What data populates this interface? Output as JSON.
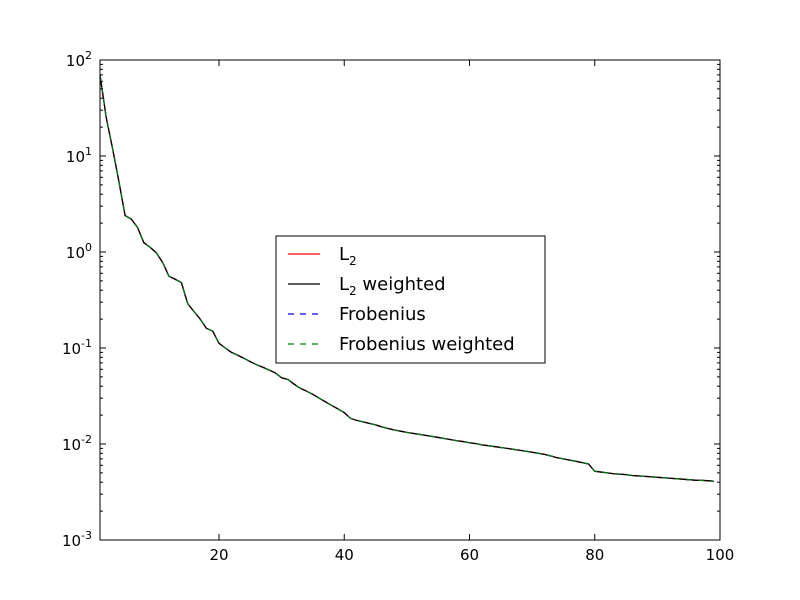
{
  "chart_data": {
    "type": "line",
    "title": "",
    "xlabel": "",
    "ylabel": "",
    "xlim": [
      1,
      100
    ],
    "ylim": [
      0.001,
      100
    ],
    "yscale": "log",
    "grid": false,
    "legend_placement": "center",
    "x_ticks": [
      {
        "value": 20,
        "label": "20"
      },
      {
        "value": 40,
        "label": "40"
      },
      {
        "value": 60,
        "label": "60"
      },
      {
        "value": 80,
        "label": "80"
      },
      {
        "value": 100,
        "label": "100"
      }
    ],
    "y_ticks": [
      {
        "value": 100,
        "base": "10",
        "exp": "2"
      },
      {
        "value": 10,
        "base": "10",
        "exp": "1"
      },
      {
        "value": 1,
        "base": "10",
        "exp": "0"
      },
      {
        "value": 0.1,
        "base": "10",
        "exp": "-1"
      },
      {
        "value": 0.01,
        "base": "10",
        "exp": "-2"
      },
      {
        "value": 0.001,
        "base": "10",
        "exp": "-3"
      }
    ],
    "x": [
      1,
      2,
      3,
      4,
      5,
      6,
      7,
      8,
      9,
      10,
      11,
      12,
      13,
      14,
      15,
      16,
      17,
      18,
      19,
      20,
      21,
      22,
      23,
      24,
      25,
      26,
      27,
      28,
      29,
      30,
      31,
      32,
      33,
      34,
      35,
      36,
      37,
      38,
      39,
      40,
      41,
      42,
      43,
      44,
      45,
      46,
      47,
      48,
      49,
      50,
      51,
      52,
      53,
      54,
      55,
      56,
      57,
      58,
      59,
      60,
      61,
      62,
      63,
      64,
      65,
      66,
      67,
      68,
      69,
      70,
      71,
      72,
      73,
      74,
      75,
      76,
      77,
      78,
      79,
      80,
      81,
      82,
      83,
      84,
      85,
      86,
      87,
      88,
      89,
      90,
      91,
      92,
      93,
      94,
      95,
      96,
      97,
      98,
      99
    ],
    "series": [
      {
        "name": "L",
        "name_sub": "2",
        "color": "#ff0000",
        "dash": "solid",
        "values": [
          70,
          25,
          12,
          5.5,
          2.4,
          2.2,
          1.8,
          1.25,
          1.12,
          0.98,
          0.78,
          0.56,
          0.52,
          0.48,
          0.29,
          0.24,
          0.2,
          0.16,
          0.15,
          0.112,
          0.1,
          0.09,
          0.084,
          0.078,
          0.072,
          0.067,
          0.063,
          0.059,
          0.055,
          0.049,
          0.047,
          0.042,
          0.038,
          0.0355,
          0.0328,
          0.03,
          0.0275,
          0.0252,
          0.0232,
          0.0212,
          0.0185,
          0.0176,
          0.017,
          0.0164,
          0.0158,
          0.0151,
          0.0145,
          0.014,
          0.0136,
          0.0132,
          0.0129,
          0.0126,
          0.0123,
          0.012,
          0.0117,
          0.0114,
          0.0111,
          0.0108,
          0.0106,
          0.0103,
          0.0101,
          0.0098,
          0.0096,
          0.0094,
          0.0092,
          0.009,
          0.0088,
          0.0086,
          0.0084,
          0.0082,
          0.008,
          0.0078,
          0.0075,
          0.0072,
          0.007,
          0.0068,
          0.0066,
          0.0064,
          0.0062,
          0.0052,
          0.0051,
          0.005,
          0.0049,
          0.00485,
          0.0048,
          0.0047,
          0.00465,
          0.0046,
          0.00455,
          0.0045,
          0.00445,
          0.0044,
          0.00435,
          0.0043,
          0.00425,
          0.0042,
          0.00418,
          0.00415,
          0.0041
        ]
      },
      {
        "name": "L",
        "name_sub": "2",
        "name_suffix": " weighted",
        "color": "#000000",
        "dash": "solid",
        "values": [
          70,
          25,
          12,
          5.5,
          2.4,
          2.2,
          1.8,
          1.25,
          1.12,
          0.98,
          0.78,
          0.56,
          0.52,
          0.48,
          0.29,
          0.24,
          0.2,
          0.16,
          0.15,
          0.112,
          0.1,
          0.09,
          0.084,
          0.078,
          0.072,
          0.067,
          0.063,
          0.059,
          0.055,
          0.049,
          0.047,
          0.042,
          0.038,
          0.0355,
          0.0328,
          0.03,
          0.0275,
          0.0252,
          0.0232,
          0.0212,
          0.0185,
          0.0176,
          0.017,
          0.0164,
          0.0158,
          0.0151,
          0.0145,
          0.014,
          0.0136,
          0.0132,
          0.0129,
          0.0126,
          0.0123,
          0.012,
          0.0117,
          0.0114,
          0.0111,
          0.0108,
          0.0106,
          0.0103,
          0.0101,
          0.0098,
          0.0096,
          0.0094,
          0.0092,
          0.009,
          0.0088,
          0.0086,
          0.0084,
          0.0082,
          0.008,
          0.0078,
          0.0075,
          0.0072,
          0.007,
          0.0068,
          0.0066,
          0.0064,
          0.0062,
          0.0052,
          0.0051,
          0.005,
          0.0049,
          0.00485,
          0.0048,
          0.0047,
          0.00465,
          0.0046,
          0.00455,
          0.0045,
          0.00445,
          0.0044,
          0.00435,
          0.0043,
          0.00425,
          0.0042,
          0.00418,
          0.00415,
          0.0041
        ]
      },
      {
        "name": "Frobenius",
        "color": "#0000ff",
        "dash": "dashed",
        "values": [
          70,
          25,
          12,
          5.5,
          2.4,
          2.2,
          1.8,
          1.25,
          1.12,
          0.98,
          0.78,
          0.56,
          0.52,
          0.48,
          0.29,
          0.24,
          0.2,
          0.16,
          0.15,
          0.112,
          0.1,
          0.09,
          0.084,
          0.078,
          0.072,
          0.067,
          0.063,
          0.059,
          0.055,
          0.049,
          0.047,
          0.042,
          0.038,
          0.0355,
          0.0328,
          0.03,
          0.0275,
          0.0252,
          0.0232,
          0.0212,
          0.0185,
          0.0176,
          0.017,
          0.0164,
          0.0158,
          0.0151,
          0.0145,
          0.014,
          0.0136,
          0.0132,
          0.0129,
          0.0126,
          0.0123,
          0.012,
          0.0117,
          0.0114,
          0.0111,
          0.0108,
          0.0106,
          0.0103,
          0.0101,
          0.0098,
          0.0096,
          0.0094,
          0.0092,
          0.009,
          0.0088,
          0.0086,
          0.0084,
          0.0082,
          0.008,
          0.0078,
          0.0075,
          0.0072,
          0.007,
          0.0068,
          0.0066,
          0.0064,
          0.0062,
          0.0052,
          0.0051,
          0.005,
          0.0049,
          0.00485,
          0.0048,
          0.0047,
          0.00465,
          0.0046,
          0.00455,
          0.0045,
          0.00445,
          0.0044,
          0.00435,
          0.0043,
          0.00425,
          0.0042,
          0.00418,
          0.00415,
          0.0041
        ]
      },
      {
        "name": "Frobenius weighted",
        "color": "#008000",
        "dash": "dashed",
        "values": [
          70,
          25,
          12,
          5.5,
          2.4,
          2.2,
          1.8,
          1.25,
          1.12,
          0.98,
          0.78,
          0.56,
          0.52,
          0.48,
          0.29,
          0.24,
          0.2,
          0.16,
          0.15,
          0.112,
          0.1,
          0.09,
          0.084,
          0.078,
          0.072,
          0.067,
          0.063,
          0.059,
          0.055,
          0.049,
          0.047,
          0.042,
          0.038,
          0.0355,
          0.0328,
          0.03,
          0.0275,
          0.0252,
          0.0232,
          0.0212,
          0.0185,
          0.0176,
          0.017,
          0.0164,
          0.0158,
          0.0151,
          0.0145,
          0.014,
          0.0136,
          0.0132,
          0.0129,
          0.0126,
          0.0123,
          0.012,
          0.0117,
          0.0114,
          0.0111,
          0.0108,
          0.0106,
          0.0103,
          0.0101,
          0.0098,
          0.0096,
          0.0094,
          0.0092,
          0.009,
          0.0088,
          0.0086,
          0.0084,
          0.0082,
          0.008,
          0.0078,
          0.0075,
          0.0072,
          0.007,
          0.0068,
          0.0066,
          0.0064,
          0.0062,
          0.0052,
          0.0051,
          0.005,
          0.0049,
          0.00485,
          0.0048,
          0.0047,
          0.00465,
          0.0046,
          0.00455,
          0.0045,
          0.00445,
          0.0044,
          0.00435,
          0.0043,
          0.00425,
          0.0042,
          0.00418,
          0.00415,
          0.0041
        ]
      }
    ]
  }
}
